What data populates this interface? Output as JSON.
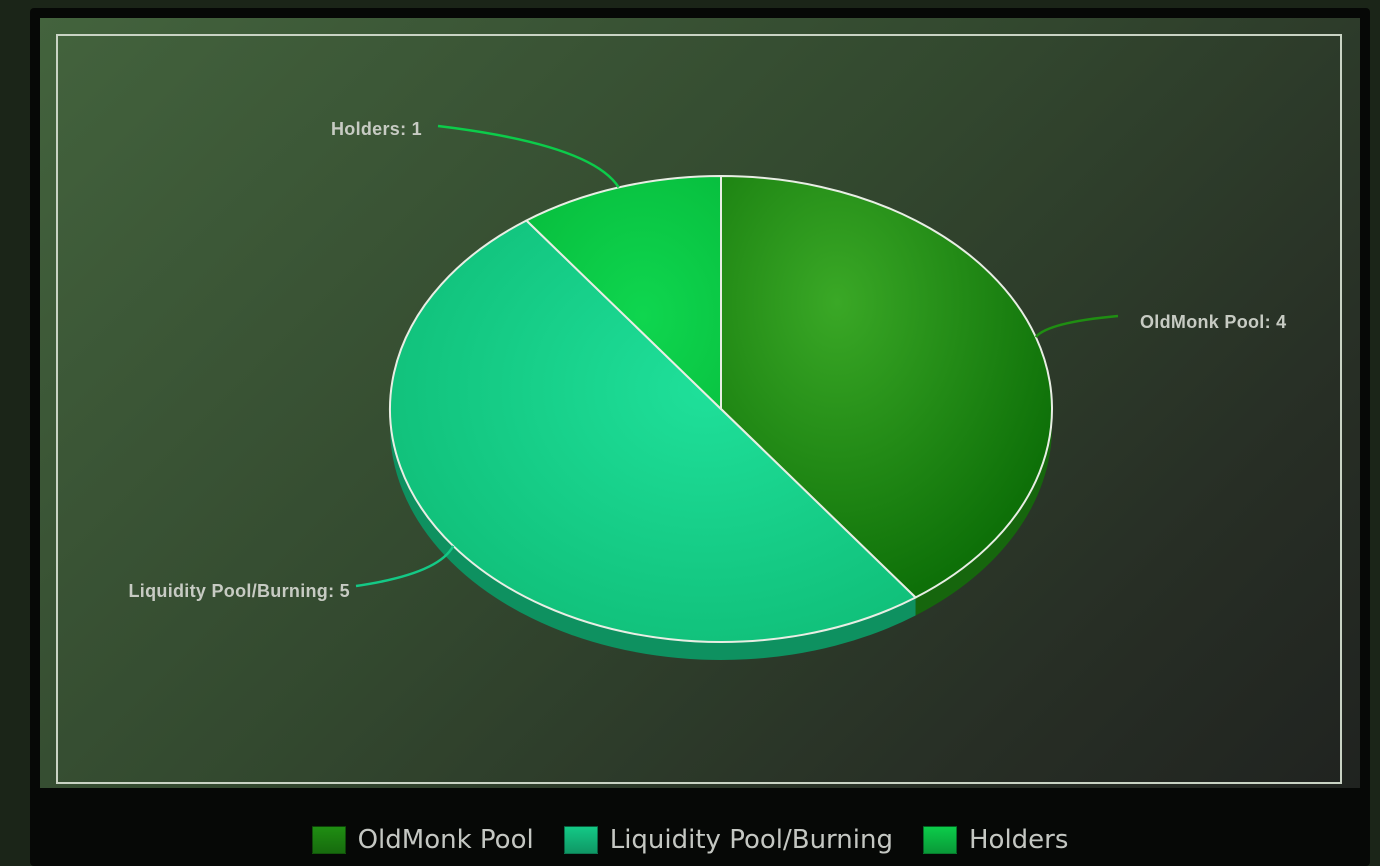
{
  "chart_data": {
    "type": "pie",
    "categories": [
      "OldMonk Pool",
      "Liquidity Pool/Burning",
      "Holders"
    ],
    "values": [
      4,
      5,
      1
    ],
    "colors": [
      "#1f8e12",
      "#14c986",
      "#0ccc4a"
    ],
    "data_labels": [
      "OldMonk Pool: 4",
      "Liquidity Pool/Burning: 5",
      "Holders: 1"
    ],
    "legend": "bottom",
    "style": "3d"
  }
}
